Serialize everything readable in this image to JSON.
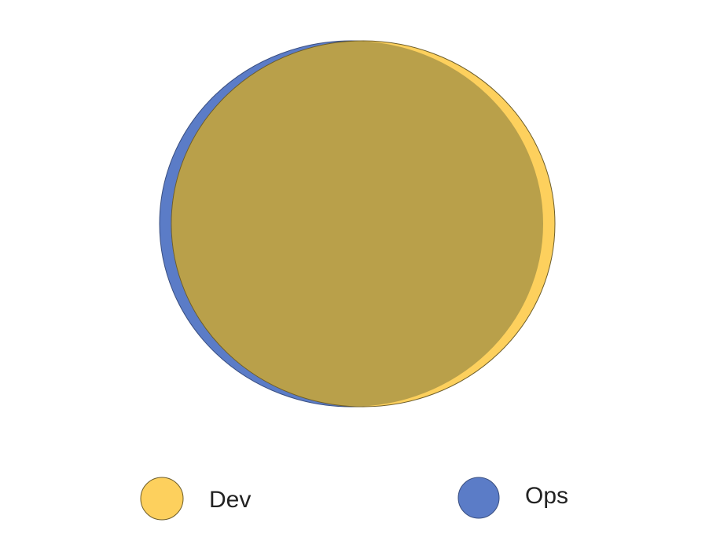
{
  "legend": {
    "items": [
      {
        "label": "Dev"
      },
      {
        "label": "Ops"
      }
    ]
  }
}
